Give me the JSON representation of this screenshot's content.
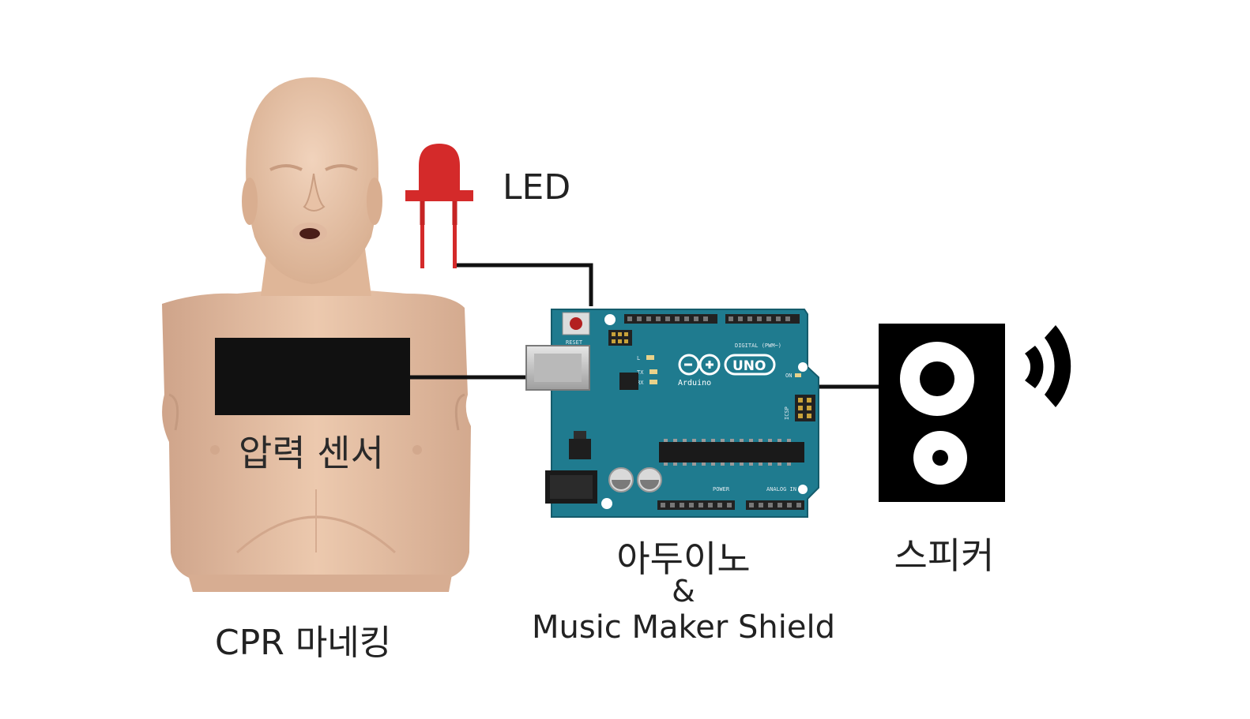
{
  "labels": {
    "led": "LED",
    "pressure_sensor": "압력 센서",
    "manikin": "CPR 마네킹",
    "arduino": "아두이노",
    "ampersand": "&",
    "shield": "Music Maker Shield",
    "speaker": "스피커"
  },
  "board": {
    "brand": "Arduino",
    "model": "UNO",
    "reset": "RESET",
    "digital": "DIGITAL (PWM~)",
    "power": "POWER",
    "analog": "ANALOG IN",
    "icsp": "ICSP",
    "on": "ON",
    "tx": "TX",
    "rx": "RX",
    "l": "L"
  },
  "colors": {
    "manikin_skin": "#e7c2a6",
    "led_red": "#d42a2a",
    "board_teal": "#1f7b8f",
    "sensor_black": "#111111",
    "wire": "#111111"
  }
}
